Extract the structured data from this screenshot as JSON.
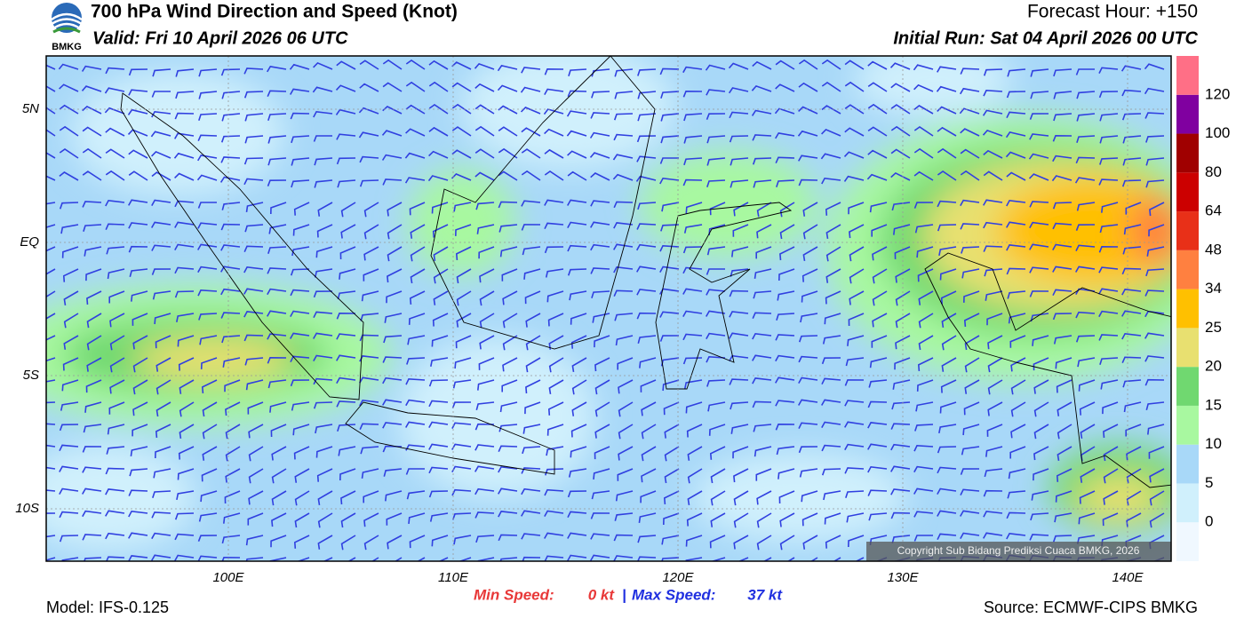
{
  "header": {
    "title": "700 hPa Wind Direction and Speed (Knot)",
    "valid": "Valid: Fri 10 April 2026 06 UTC",
    "forecast_hour": "Forecast Hour: +150",
    "initial_run": "Initial Run: Sat 04 April 2026 00 UTC",
    "logo_text": "BMKG"
  },
  "axes": {
    "longitude_labels": [
      "100E",
      "110E",
      "120E",
      "130E",
      "140E"
    ],
    "latitude_labels": [
      "5N",
      "EQ",
      "5S",
      "10S"
    ]
  },
  "colorbar": {
    "labels": [
      "0",
      "5",
      "10",
      "15",
      "20",
      "25",
      "34",
      "48",
      "64",
      "80",
      "100",
      "120"
    ],
    "colors": [
      "#f0f8ff",
      "#d0f0fc",
      "#a8d8f8",
      "#a8f8a0",
      "#70d870",
      "#e8e070",
      "#ffc000",
      "#ff8040",
      "#e83018",
      "#cc0000",
      "#a00000",
      "#8000a0",
      "#ff6f86"
    ]
  },
  "footer": {
    "model": "Model: IFS-0.125",
    "min_label": "Min Speed:",
    "min_value": "0 kt",
    "separator": "|",
    "max_label": "Max Speed:",
    "max_value": "37 kt",
    "source": "Source: ECMWF-CIPS BMKG",
    "copyright": "Copyright Sub Bidang Prediksi Cuaca BMKG, 2026"
  }
}
